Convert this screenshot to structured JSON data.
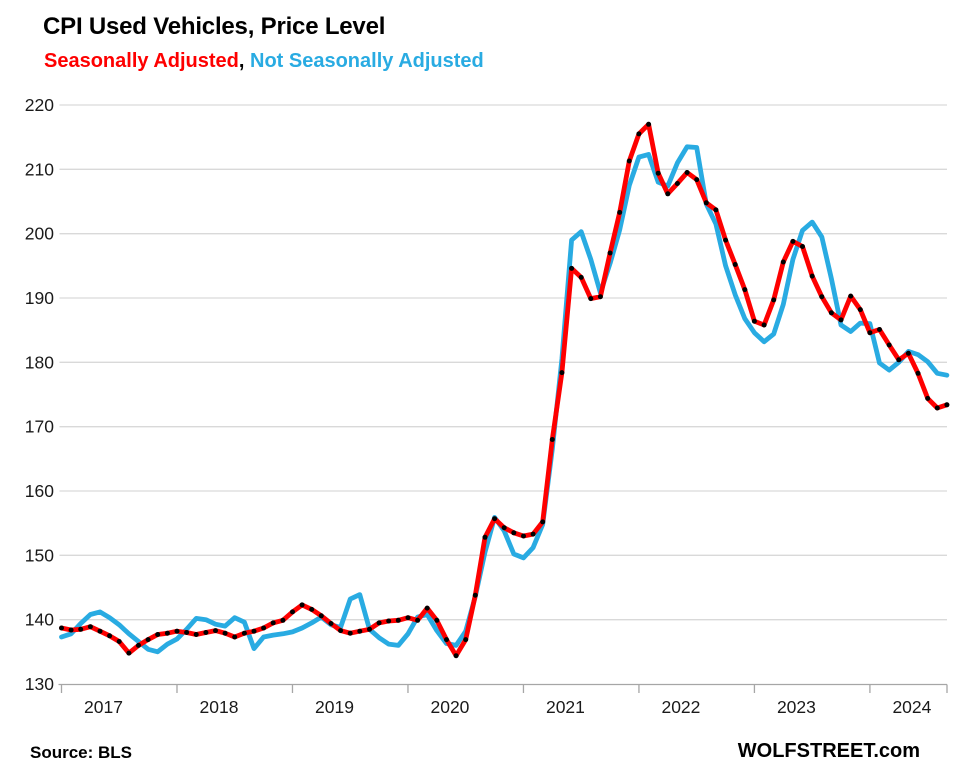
{
  "header": {
    "title": "CPI Used Vehicles, Price Level",
    "legend_sa": "Seasonally Adjusted",
    "legend_separator": ", ",
    "legend_nsa": "Not Seasonally Adjusted"
  },
  "footer": {
    "source": "Source: BLS",
    "brand": "WOLFSTREET.com"
  },
  "colors": {
    "sa_line": "#fe0000",
    "nsa_line": "#29abe2",
    "marker": "#000000",
    "grid": "#d9d9d9",
    "axis": "#a6a6a6",
    "tick_text": "#1a1a1a"
  },
  "chart_data": {
    "type": "line",
    "title": "CPI Used Vehicles, Price Level",
    "x_start": "2017-01",
    "x_end": "2024-09",
    "frequency": "monthly",
    "x_tick_labels": [
      "2017",
      "2018",
      "2019",
      "2020",
      "2021",
      "2022",
      "2023",
      "2024"
    ],
    "y_ticks": [
      130,
      140,
      150,
      160,
      170,
      180,
      190,
      200,
      210,
      220
    ],
    "ylim": [
      130,
      220
    ],
    "grid": "horizontal",
    "legend_position": "top-left-subtitle",
    "series": [
      {
        "name": "Seasonally Adjusted",
        "color": "#fe0000",
        "marker": "black-dots",
        "values": [
          138.7,
          138.4,
          138.5,
          138.9,
          138.2,
          137.5,
          136.6,
          134.8,
          136.0,
          136.9,
          137.7,
          137.9,
          138.2,
          138.0,
          137.7,
          138.0,
          138.3,
          137.9,
          137.3,
          137.9,
          138.2,
          138.7,
          139.5,
          139.9,
          141.2,
          142.3,
          141.6,
          140.6,
          139.4,
          138.3,
          137.9,
          138.2,
          138.5,
          139.5,
          139.8,
          139.9,
          140.3,
          139.9,
          141.8,
          139.9,
          136.9,
          134.4,
          136.9,
          143.8,
          152.8,
          155.7,
          154.3,
          153.5,
          153.0,
          153.3,
          155.2,
          168.0,
          178.4,
          194.6,
          193.2,
          189.9,
          190.2,
          197.0,
          203.3,
          211.3,
          215.5,
          217.0,
          209.4,
          206.2,
          207.8,
          209.5,
          208.4,
          204.8,
          203.7,
          199.0,
          195.2,
          191.3,
          186.4,
          185.8,
          189.7,
          195.6,
          198.8,
          198.0,
          193.4,
          190.2,
          187.7,
          186.6,
          190.3,
          188.2,
          184.6,
          185.1,
          182.7,
          180.4,
          181.4,
          178.3,
          174.4,
          172.9,
          173.4
        ]
      },
      {
        "name": "Not Seasonally Adjusted",
        "color": "#29abe2",
        "marker": "none",
        "values": [
          137.3,
          137.8,
          139.4,
          140.8,
          141.2,
          140.3,
          139.2,
          137.8,
          136.6,
          135.4,
          135.0,
          136.2,
          137.0,
          138.5,
          140.2,
          140.0,
          139.3,
          139.0,
          140.3,
          139.6,
          135.5,
          137.3,
          137.6,
          137.8,
          138.1,
          138.7,
          139.5,
          140.4,
          139.2,
          138.8,
          143.2,
          143.9,
          138.5,
          137.2,
          136.2,
          136.0,
          137.8,
          140.4,
          140.8,
          138.3,
          136.3,
          136.0,
          138.2,
          143.6,
          150.5,
          155.9,
          153.8,
          150.2,
          149.6,
          151.2,
          154.8,
          166.5,
          180.5,
          199.0,
          200.3,
          196.0,
          190.8,
          195.4,
          200.6,
          207.5,
          211.9,
          212.3,
          208.0,
          207.4,
          211.0,
          213.5,
          213.4,
          204.6,
          201.5,
          195.0,
          190.5,
          186.8,
          184.6,
          183.2,
          184.4,
          189.0,
          196.0,
          200.5,
          201.8,
          199.5,
          193.0,
          185.8,
          184.8,
          186.1,
          186.0,
          179.9,
          178.8,
          180.0,
          181.7,
          181.2,
          180.1,
          178.3,
          178.0
        ]
      }
    ]
  }
}
